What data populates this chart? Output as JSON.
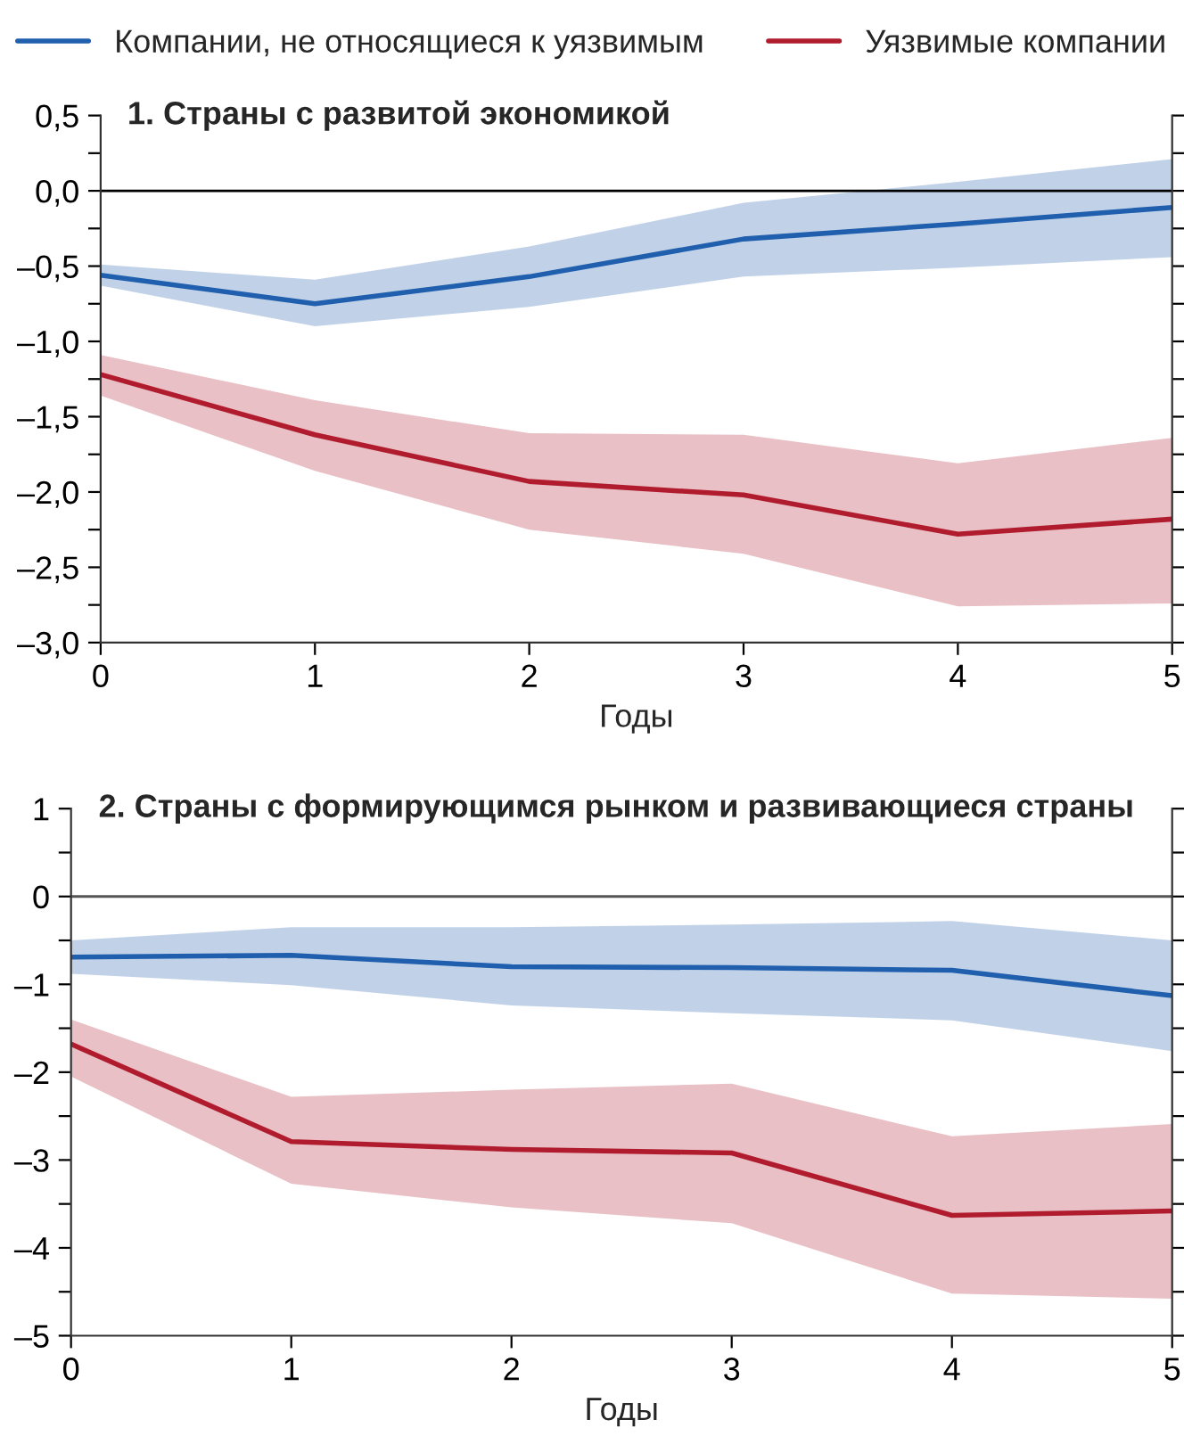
{
  "chart_data": [
    {
      "type": "line",
      "title": "1. Страны с развитой экономикой",
      "xlabel": "Годы",
      "x": [
        0,
        1,
        2,
        3,
        4,
        5
      ],
      "xlim": [
        0,
        5
      ],
      "xticks": [
        0,
        1,
        2,
        3,
        4,
        5
      ],
      "ylim": [
        -3,
        0.5
      ],
      "yticks": [
        {
          "value": 0.5,
          "label": "0,5"
        },
        {
          "value": 0.25,
          "label": null
        },
        {
          "value": 0,
          "label": "0,0"
        },
        {
          "value": -0.25,
          "label": null
        },
        {
          "value": -0.5,
          "label": "–0,5"
        },
        {
          "value": -0.75,
          "label": null
        },
        {
          "value": -1,
          "label": "–1,0"
        },
        {
          "value": -1.25,
          "label": null
        },
        {
          "value": -1.5,
          "label": "–1,5"
        },
        {
          "value": -1.75,
          "label": null
        },
        {
          "value": -2,
          "label": "–2,0"
        },
        {
          "value": -2.25,
          "label": null
        },
        {
          "value": -2.5,
          "label": "–2,5"
        },
        {
          "value": -2.75,
          "label": null
        },
        {
          "value": -3,
          "label": "–3,0"
        }
      ],
      "ref_lines": [
        {
          "axis": "y",
          "value": 0,
          "color": "#000000"
        }
      ],
      "legend": "top",
      "grid": false,
      "series": [
        {
          "name": "Компании, не относящиеся к уязвимым",
          "color": "#1f5fad",
          "values": [
            -0.56,
            -0.75,
            -0.57,
            -0.32,
            -0.22,
            -0.11
          ],
          "lower": [
            -0.63,
            -0.9,
            -0.77,
            -0.57,
            -0.51,
            -0.44
          ],
          "upper": [
            -0.49,
            -0.59,
            -0.37,
            -0.08,
            0.06,
            0.21
          ]
        },
        {
          "name": "Уязвимые компании",
          "color": "#b01c2e",
          "values": [
            -1.22,
            -1.62,
            -1.93,
            -2.02,
            -2.28,
            -2.18
          ],
          "lower": [
            -1.36,
            -1.86,
            -2.25,
            -2.41,
            -2.76,
            -2.74
          ],
          "upper": [
            -1.09,
            -1.39,
            -1.61,
            -1.62,
            -1.81,
            -1.64
          ]
        }
      ]
    },
    {
      "type": "line",
      "title": "2. Страны с формирующимся рынком и развивающиеся страны",
      "xlabel": "Годы",
      "x": [
        0,
        1,
        2,
        3,
        4,
        5
      ],
      "xlim": [
        0,
        5
      ],
      "xticks": [
        0,
        1,
        2,
        3,
        4,
        5
      ],
      "ylim": [
        -5,
        1
      ],
      "yticks": [
        1,
        {
          "value": 0.5,
          "label": null
        },
        0,
        {
          "value": -0.5,
          "label": null
        },
        {
          "value": -1,
          "label": "–1"
        },
        {
          "value": -1.5,
          "label": null
        },
        {
          "value": -2,
          "label": "–2"
        },
        {
          "value": -2.5,
          "label": null
        },
        {
          "value": -3,
          "label": "–3"
        },
        {
          "value": -3.5,
          "label": null
        },
        {
          "value": -4,
          "label": "–4"
        },
        {
          "value": -4.5,
          "label": null
        },
        {
          "value": -5,
          "label": "–5"
        }
      ],
      "ref_lines": [
        {
          "axis": "y",
          "value": 0,
          "color": "#555555"
        }
      ],
      "grid": false,
      "series": [
        {
          "color": "#1f5fad",
          "values": [
            -0.69,
            -0.67,
            -0.8,
            -0.81,
            -0.84,
            -1.13
          ],
          "lower": [
            -0.88,
            -1.01,
            -1.24,
            -1.33,
            -1.41,
            -1.76
          ],
          "upper": [
            -0.5,
            -0.35,
            -0.35,
            -0.32,
            -0.28,
            -0.5
          ]
        },
        {
          "color": "#b01c2e",
          "values": [
            -1.68,
            -2.79,
            -2.88,
            -2.92,
            -3.63,
            -3.58
          ],
          "lower": [
            -2.05,
            -3.27,
            -3.54,
            -3.72,
            -4.52,
            -4.58
          ],
          "upper": [
            -1.4,
            -2.28,
            -2.2,
            -2.13,
            -2.73,
            -2.59
          ]
        }
      ]
    }
  ]
}
